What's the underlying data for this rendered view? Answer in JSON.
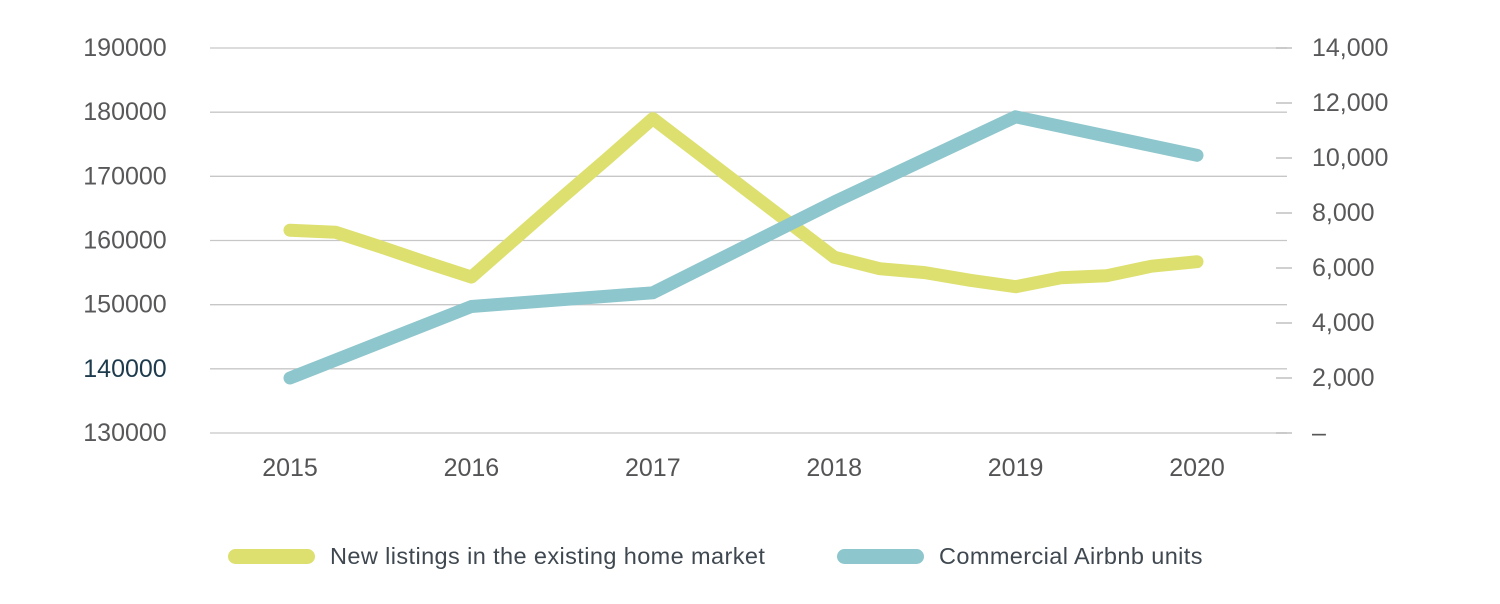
{
  "chart_data": {
    "type": "line",
    "title": "",
    "xlabel": "",
    "ylabel_left": "",
    "ylabel_right": "",
    "grid": "horizontal",
    "legend_position": "bottom",
    "x_axis": {
      "range": [
        2015,
        2020
      ],
      "tick_labels": [
        "2015",
        "2016",
        "2017",
        "2018",
        "2019",
        "2020"
      ]
    },
    "left_axis": {
      "min": 130000,
      "max": 190000,
      "ticks": [
        {
          "v": 190000,
          "label": "190000"
        },
        {
          "v": 180000,
          "label": "180000"
        },
        {
          "v": 170000,
          "label": "170000"
        },
        {
          "v": 160000,
          "label": "160000"
        },
        {
          "v": 150000,
          "label": "150000"
        },
        {
          "v": 140000,
          "label": "140000",
          "highlight": true
        },
        {
          "v": 130000,
          "label": "130000"
        }
      ]
    },
    "right_axis": {
      "min": 0,
      "max": 14000,
      "ticks": [
        {
          "v": 14000,
          "label": "14,000"
        },
        {
          "v": 12000,
          "label": "12,000"
        },
        {
          "v": 10000,
          "label": "10,000"
        },
        {
          "v": 8000,
          "label": "8,000"
        },
        {
          "v": 6000,
          "label": "6,000"
        },
        {
          "v": 4000,
          "label": "4,000"
        },
        {
          "v": 2000,
          "label": "2,000"
        },
        {
          "v": 0,
          "label": "–"
        }
      ]
    },
    "series": [
      {
        "name": "New listings in the existing home market",
        "axis": "left",
        "color": "#dde06f",
        "points": [
          [
            2015.0,
            161600
          ],
          [
            2015.25,
            161300
          ],
          [
            2015.5,
            159000
          ],
          [
            2015.75,
            156600
          ],
          [
            2016.0,
            154300
          ],
          [
            2016.25,
            160500
          ],
          [
            2016.5,
            166700
          ],
          [
            2016.75,
            172800
          ],
          [
            2017.0,
            179000
          ],
          [
            2017.25,
            173600
          ],
          [
            2017.5,
            168200
          ],
          [
            2017.75,
            162800
          ],
          [
            2018.0,
            157400
          ],
          [
            2018.25,
            155600
          ],
          [
            2018.5,
            155000
          ],
          [
            2018.75,
            153800
          ],
          [
            2019.0,
            152800
          ],
          [
            2019.25,
            154200
          ],
          [
            2019.5,
            154500
          ],
          [
            2019.75,
            156000
          ],
          [
            2020.0,
            156700
          ]
        ]
      },
      {
        "name": "Commercial Airbnb units",
        "axis": "right",
        "color": "#8dc6cc",
        "points": [
          [
            2015,
            2000
          ],
          [
            2016,
            4600
          ],
          [
            2017,
            5100
          ],
          [
            2018,
            8400
          ],
          [
            2019,
            11500
          ],
          [
            2020,
            10100
          ]
        ]
      }
    ],
    "palette": {
      "grid": "#c7c7c8",
      "right_tick_mark": "#b0b0b1",
      "tick_text": "#58585a",
      "highlight_tick_text": "#1d3b4d",
      "year_text": "#545456",
      "legend_text": "#3f4850"
    }
  }
}
